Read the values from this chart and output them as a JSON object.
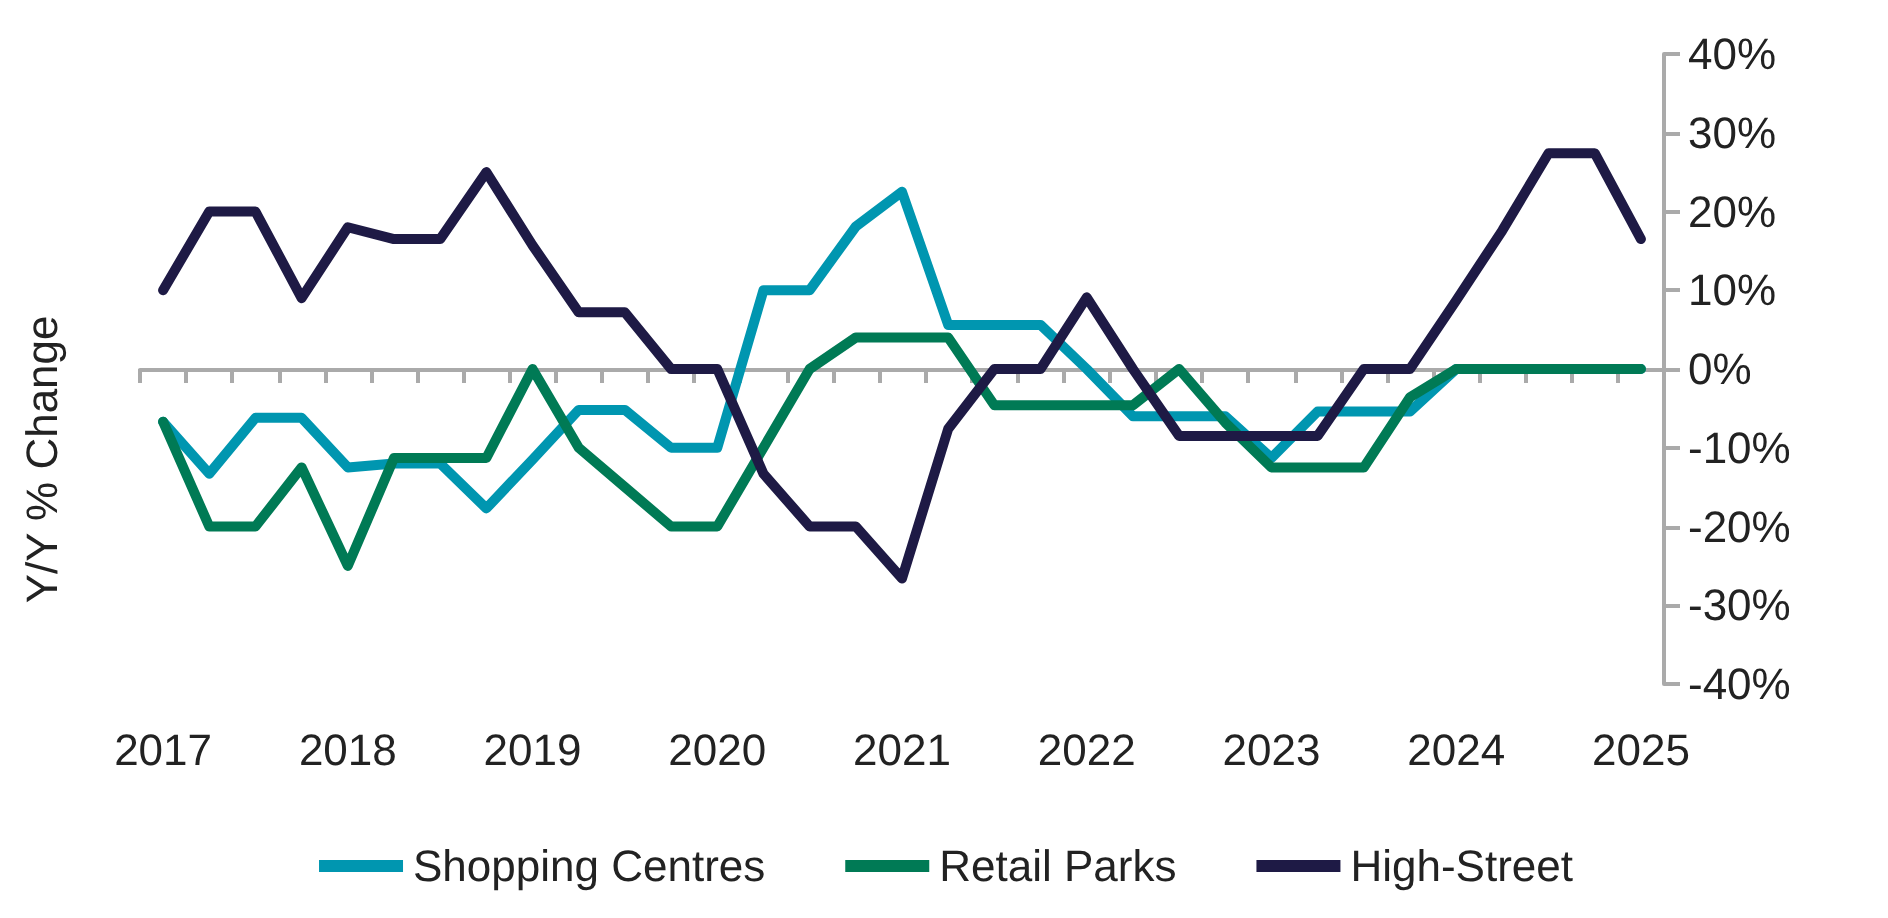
{
  "chart_data": {
    "type": "line",
    "ylabel": "Y/Y % Change",
    "categories": [
      "2017",
      null,
      null,
      null,
      "2018",
      null,
      null,
      null,
      "2019",
      null,
      null,
      null,
      "2020",
      null,
      null,
      null,
      "2021",
      null,
      null,
      null,
      "2022",
      null,
      null,
      null,
      "2023",
      null,
      null,
      null,
      "2024",
      null,
      null,
      null,
      "2025"
    ],
    "series": [
      {
        "name": "Shopping Centres",
        "color": "#0096b0",
        "values": [
          -6.7,
          -13.3,
          -6.2,
          -6.2,
          -12.5,
          -12,
          -12,
          -17.7,
          -11.5,
          -5.2,
          -5.2,
          -10,
          -10,
          10,
          10,
          18.1,
          22.5,
          5.6,
          5.6,
          5.6,
          0,
          -6,
          -6,
          -6,
          -11.3,
          -5.4,
          -5.4,
          -5.4,
          0,
          0,
          0,
          0,
          0
        ]
      },
      {
        "name": "Retail Parks",
        "color": "#007a55",
        "values": [
          -6.7,
          -20,
          -20,
          -12.5,
          -25,
          -11.3,
          -11.3,
          -11.3,
          0,
          -10,
          -15,
          -20,
          -20,
          -10,
          0,
          4,
          4,
          4,
          -4.6,
          -4.6,
          -4.6,
          -4.6,
          0,
          -6.8,
          -12.5,
          -12.5,
          -12.5,
          -3.6,
          0,
          0,
          0,
          0,
          0
        ]
      },
      {
        "name": "High-Street",
        "color": "#1e1a45",
        "values": [
          10,
          20,
          20,
          9,
          18,
          16.5,
          16.5,
          25,
          15.7,
          7.2,
          7.2,
          0,
          0,
          -13.3,
          -20,
          -20,
          -26.6,
          -7.6,
          0,
          0,
          9.1,
          0,
          -8.5,
          -8.5,
          -8.5,
          -8.5,
          0,
          0,
          8.7,
          17.6,
          27.4,
          27.4,
          16.5
        ]
      }
    ],
    "ylim": [
      -40,
      40
    ],
    "yticks": [
      {
        "value": -40,
        "label": "-40%"
      },
      {
        "value": -30,
        "label": "-30%"
      },
      {
        "value": -20,
        "label": "-20%"
      },
      {
        "value": -10,
        "label": "-10%"
      },
      {
        "value": 0,
        "label": "0%"
      },
      {
        "value": 10,
        "label": "10%"
      },
      {
        "value": 20,
        "label": "20%"
      },
      {
        "value": 30,
        "label": "30%"
      },
      {
        "value": 40,
        "label": "40%"
      }
    ],
    "legend": "bottom",
    "marker": "none",
    "line_style": "solid"
  }
}
